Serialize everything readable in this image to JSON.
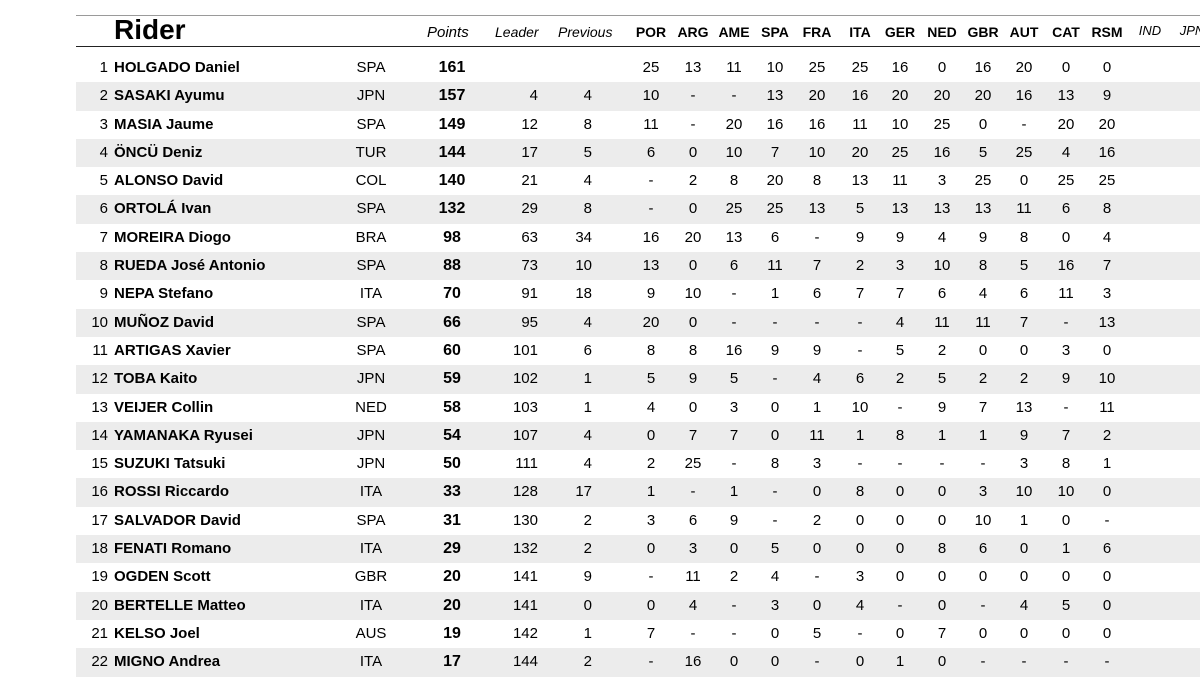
{
  "header": {
    "title": "Rider",
    "points": "Points",
    "leader": "Leader",
    "previous": "Previous",
    "races": [
      "POR",
      "ARG",
      "AME",
      "SPA",
      "FRA",
      "ITA",
      "GER",
      "NED",
      "GBR",
      "AUT",
      "CAT",
      "RSM"
    ],
    "extra_races": [
      "IND",
      "JPN"
    ]
  },
  "riders": [
    {
      "pos": "1",
      "name": "HOLGADO Daniel",
      "nat": "SPA",
      "points": "161",
      "leader": "",
      "previous": "",
      "results": [
        "25",
        "13",
        "11",
        "10",
        "25",
        "25",
        "16",
        "0",
        "16",
        "20",
        "0",
        "0"
      ]
    },
    {
      "pos": "2",
      "name": "SASAKI Ayumu",
      "nat": "JPN",
      "points": "157",
      "leader": "4",
      "previous": "4",
      "results": [
        "10",
        "-",
        "-",
        "13",
        "20",
        "16",
        "20",
        "20",
        "20",
        "16",
        "13",
        "9"
      ]
    },
    {
      "pos": "3",
      "name": "MASIA Jaume",
      "nat": "SPA",
      "points": "149",
      "leader": "12",
      "previous": "8",
      "results": [
        "11",
        "-",
        "20",
        "16",
        "16",
        "11",
        "10",
        "25",
        "0",
        "-",
        "20",
        "20"
      ]
    },
    {
      "pos": "4",
      "name": "ÖNCÜ Deniz",
      "nat": "TUR",
      "points": "144",
      "leader": "17",
      "previous": "5",
      "results": [
        "6",
        "0",
        "10",
        "7",
        "10",
        "20",
        "25",
        "16",
        "5",
        "25",
        "4",
        "16"
      ]
    },
    {
      "pos": "5",
      "name": "ALONSO David",
      "nat": "COL",
      "points": "140",
      "leader": "21",
      "previous": "4",
      "results": [
        "-",
        "2",
        "8",
        "20",
        "8",
        "13",
        "11",
        "3",
        "25",
        "0",
        "25",
        "25"
      ]
    },
    {
      "pos": "6",
      "name": "ORTOLÁ Ivan",
      "nat": "SPA",
      "points": "132",
      "leader": "29",
      "previous": "8",
      "results": [
        "-",
        "0",
        "25",
        "25",
        "13",
        "5",
        "13",
        "13",
        "13",
        "11",
        "6",
        "8"
      ]
    },
    {
      "pos": "7",
      "name": "MOREIRA Diogo",
      "nat": "BRA",
      "points": "98",
      "leader": "63",
      "previous": "34",
      "results": [
        "16",
        "20",
        "13",
        "6",
        "-",
        "9",
        "9",
        "4",
        "9",
        "8",
        "0",
        "4"
      ]
    },
    {
      "pos": "8",
      "name": "RUEDA José Antonio",
      "nat": "SPA",
      "points": "88",
      "leader": "73",
      "previous": "10",
      "results": [
        "13",
        "0",
        "6",
        "11",
        "7",
        "2",
        "3",
        "10",
        "8",
        "5",
        "16",
        "7"
      ]
    },
    {
      "pos": "9",
      "name": "NEPA Stefano",
      "nat": "ITA",
      "points": "70",
      "leader": "91",
      "previous": "18",
      "results": [
        "9",
        "10",
        "-",
        "1",
        "6",
        "7",
        "7",
        "6",
        "4",
        "6",
        "11",
        "3"
      ]
    },
    {
      "pos": "10",
      "name": "MUÑOZ David",
      "nat": "SPA",
      "points": "66",
      "leader": "95",
      "previous": "4",
      "results": [
        "20",
        "0",
        "-",
        "-",
        "-",
        "-",
        "4",
        "11",
        "11",
        "7",
        "-",
        "13"
      ]
    },
    {
      "pos": "11",
      "name": "ARTIGAS Xavier",
      "nat": "SPA",
      "points": "60",
      "leader": "101",
      "previous": "6",
      "results": [
        "8",
        "8",
        "16",
        "9",
        "9",
        "-",
        "5",
        "2",
        "0",
        "0",
        "3",
        "0"
      ]
    },
    {
      "pos": "12",
      "name": "TOBA Kaito",
      "nat": "JPN",
      "points": "59",
      "leader": "102",
      "previous": "1",
      "results": [
        "5",
        "9",
        "5",
        "-",
        "4",
        "6",
        "2",
        "5",
        "2",
        "2",
        "9",
        "10"
      ]
    },
    {
      "pos": "13",
      "name": "VEIJER Collin",
      "nat": "NED",
      "points": "58",
      "leader": "103",
      "previous": "1",
      "results": [
        "4",
        "0",
        "3",
        "0",
        "1",
        "10",
        "-",
        "9",
        "7",
        "13",
        "-",
        "11"
      ]
    },
    {
      "pos": "14",
      "name": "YAMANAKA Ryusei",
      "nat": "JPN",
      "points": "54",
      "leader": "107",
      "previous": "4",
      "results": [
        "0",
        "7",
        "7",
        "0",
        "11",
        "1",
        "8",
        "1",
        "1",
        "9",
        "7",
        "2"
      ]
    },
    {
      "pos": "15",
      "name": "SUZUKI Tatsuki",
      "nat": "JPN",
      "points": "50",
      "leader": "111",
      "previous": "4",
      "results": [
        "2",
        "25",
        "-",
        "8",
        "3",
        "-",
        "-",
        "-",
        "-",
        "3",
        "8",
        "1"
      ]
    },
    {
      "pos": "16",
      "name": "ROSSI Riccardo",
      "nat": "ITA",
      "points": "33",
      "leader": "128",
      "previous": "17",
      "results": [
        "1",
        "-",
        "1",
        "-",
        "0",
        "8",
        "0",
        "0",
        "3",
        "10",
        "10",
        "0"
      ]
    },
    {
      "pos": "17",
      "name": "SALVADOR David",
      "nat": "SPA",
      "points": "31",
      "leader": "130",
      "previous": "2",
      "results": [
        "3",
        "6",
        "9",
        "-",
        "2",
        "0",
        "0",
        "0",
        "10",
        "1",
        "0",
        "-"
      ]
    },
    {
      "pos": "18",
      "name": "FENATI Romano",
      "nat": "ITA",
      "points": "29",
      "leader": "132",
      "previous": "2",
      "results": [
        "0",
        "3",
        "0",
        "5",
        "0",
        "0",
        "0",
        "8",
        "6",
        "0",
        "1",
        "6"
      ]
    },
    {
      "pos": "19",
      "name": "OGDEN Scott",
      "nat": "GBR",
      "points": "20",
      "leader": "141",
      "previous": "9",
      "results": [
        "-",
        "11",
        "2",
        "4",
        "-",
        "3",
        "0",
        "0",
        "0",
        "0",
        "0",
        "0"
      ]
    },
    {
      "pos": "20",
      "name": "BERTELLE Matteo",
      "nat": "ITA",
      "points": "20",
      "leader": "141",
      "previous": "0",
      "results": [
        "0",
        "4",
        "-",
        "3",
        "0",
        "4",
        "-",
        "0",
        "-",
        "4",
        "5",
        "0"
      ]
    },
    {
      "pos": "21",
      "name": "KELSO Joel",
      "nat": "AUS",
      "points": "19",
      "leader": "142",
      "previous": "1",
      "results": [
        "7",
        "-",
        "-",
        "0",
        "5",
        "-",
        "0",
        "7",
        "0",
        "0",
        "0",
        "0"
      ]
    },
    {
      "pos": "22",
      "name": "MIGNO Andrea",
      "nat": "ITA",
      "points": "17",
      "leader": "144",
      "previous": "2",
      "results": [
        "-",
        "16",
        "0",
        "0",
        "-",
        "0",
        "1",
        "0",
        "-",
        "-",
        "-",
        "-"
      ]
    }
  ]
}
